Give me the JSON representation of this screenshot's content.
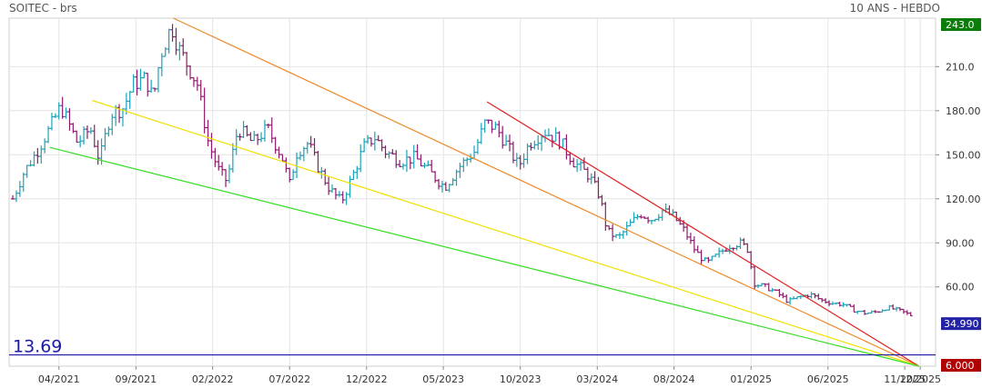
{
  "header": {
    "title": "SOITEC - brs",
    "period": "10 ANS - HEBDO"
  },
  "badges": {
    "high": {
      "label": "243.0",
      "value": 243.0,
      "color": "#0a7d0a"
    },
    "last": {
      "label": "34.990",
      "value": 34.99,
      "color": "#2323a8"
    },
    "low": {
      "label": "6.000",
      "value": 6.0,
      "color": "#b00000"
    }
  },
  "reference_line": {
    "label": "13.69",
    "value": 13.69,
    "color": "#1a1aa6"
  },
  "chart_data": {
    "type": "ohlc-bar",
    "title": "SOITEC - brs",
    "xlabel": "",
    "ylabel": "",
    "ylim": [
      6,
      243
    ],
    "y_ticks": [
      {
        "label": "210.0",
        "value": 210
      },
      {
        "label": "180.00",
        "value": 180
      },
      {
        "label": "150.00",
        "value": 150
      },
      {
        "label": "120.00",
        "value": 120
      },
      {
        "label": "90.00",
        "value": 90
      },
      {
        "label": "60.00",
        "value": 60
      }
    ],
    "x_ticks": [
      {
        "label": "04/2021",
        "t": 2021.25
      },
      {
        "label": "09/2021",
        "t": 2021.667
      },
      {
        "label": "02/2022",
        "t": 2022.083
      },
      {
        "label": "07/2022",
        "t": 2022.5
      },
      {
        "label": "12/2022",
        "t": 2022.917
      },
      {
        "label": "05/2023",
        "t": 2023.333
      },
      {
        "label": "10/2023",
        "t": 2023.75
      },
      {
        "label": "03/2024",
        "t": 2024.167
      },
      {
        "label": "08/2024",
        "t": 2024.583
      },
      {
        "label": "01/2025",
        "t": 2025.0
      },
      {
        "label": "06/2025",
        "t": 2025.417
      },
      {
        "label": "11/2025",
        "t": 2025.833
      },
      {
        "label": "12/2025",
        "t": 2025.917
      }
    ],
    "xlim": [
      2020.98,
      2026.0
    ],
    "grid": true,
    "price_anchors": [
      [
        2021.0,
        120
      ],
      [
        2021.06,
        138
      ],
      [
        2021.13,
        152
      ],
      [
        2021.2,
        168
      ],
      [
        2021.26,
        183
      ],
      [
        2021.3,
        172
      ],
      [
        2021.35,
        158
      ],
      [
        2021.42,
        168
      ],
      [
        2021.47,
        146
      ],
      [
        2021.53,
        178
      ],
      [
        2021.6,
        182
      ],
      [
        2021.65,
        198
      ],
      [
        2021.72,
        202
      ],
      [
        2021.76,
        188
      ],
      [
        2021.8,
        218
      ],
      [
        2021.86,
        238
      ],
      [
        2021.9,
        222
      ],
      [
        2021.96,
        208
      ],
      [
        2022.0,
        198
      ],
      [
        2022.06,
        158
      ],
      [
        2022.12,
        138
      ],
      [
        2022.16,
        132
      ],
      [
        2022.22,
        168
      ],
      [
        2022.3,
        158
      ],
      [
        2022.38,
        168
      ],
      [
        2022.46,
        148
      ],
      [
        2022.5,
        130
      ],
      [
        2022.54,
        152
      ],
      [
        2022.6,
        158
      ],
      [
        2022.66,
        140
      ],
      [
        2022.72,
        126
      ],
      [
        2022.78,
        118
      ],
      [
        2022.84,
        135
      ],
      [
        2022.9,
        155
      ],
      [
        2022.96,
        162
      ],
      [
        2023.02,
        152
      ],
      [
        2023.1,
        146
      ],
      [
        2023.18,
        148
      ],
      [
        2023.26,
        138
      ],
      [
        2023.34,
        128
      ],
      [
        2023.42,
        142
      ],
      [
        2023.5,
        152
      ],
      [
        2023.56,
        172
      ],
      [
        2023.62,
        168
      ],
      [
        2023.68,
        156
      ],
      [
        2023.74,
        142
      ],
      [
        2023.8,
        158
      ],
      [
        2023.88,
        166
      ],
      [
        2023.96,
        160
      ],
      [
        2024.04,
        145
      ],
      [
        2024.12,
        136
      ],
      [
        2024.18,
        122
      ],
      [
        2024.22,
        98
      ],
      [
        2024.28,
        93
      ],
      [
        2024.34,
        102
      ],
      [
        2024.4,
        110
      ],
      [
        2024.46,
        106
      ],
      [
        2024.52,
        112
      ],
      [
        2024.58,
        108
      ],
      [
        2024.64,
        98
      ],
      [
        2024.7,
        84
      ],
      [
        2024.76,
        76
      ],
      [
        2024.82,
        82
      ],
      [
        2024.88,
        88
      ],
      [
        2024.94,
        90
      ],
      [
        2024.98,
        86
      ],
      [
        2025.02,
        62
      ],
      [
        2025.08,
        60
      ],
      [
        2025.14,
        56
      ],
      [
        2025.2,
        50
      ],
      [
        2025.26,
        53
      ],
      [
        2025.32,
        55
      ],
      [
        2025.38,
        51
      ],
      [
        2025.44,
        49
      ],
      [
        2025.5,
        48
      ],
      [
        2025.56,
        44
      ],
      [
        2025.62,
        42
      ],
      [
        2025.68,
        43
      ],
      [
        2025.74,
        46
      ],
      [
        2025.8,
        44
      ],
      [
        2025.84,
        42
      ],
      [
        2025.88,
        40
      ]
    ],
    "trendlines": [
      {
        "color": "#ef8a2a",
        "from": [
          2021.87,
          243
        ],
        "to": [
          2025.91,
          6
        ]
      },
      {
        "color": "#e02020",
        "from": [
          2023.57,
          186
        ],
        "to": [
          2025.91,
          6
        ]
      },
      {
        "color": "#f0e000",
        "from": [
          2021.43,
          187
        ],
        "to": [
          2025.91,
          6
        ]
      },
      {
        "color": "#33dd22",
        "from": [
          2021.2,
          155
        ],
        "to": [
          2025.91,
          6
        ]
      }
    ]
  }
}
